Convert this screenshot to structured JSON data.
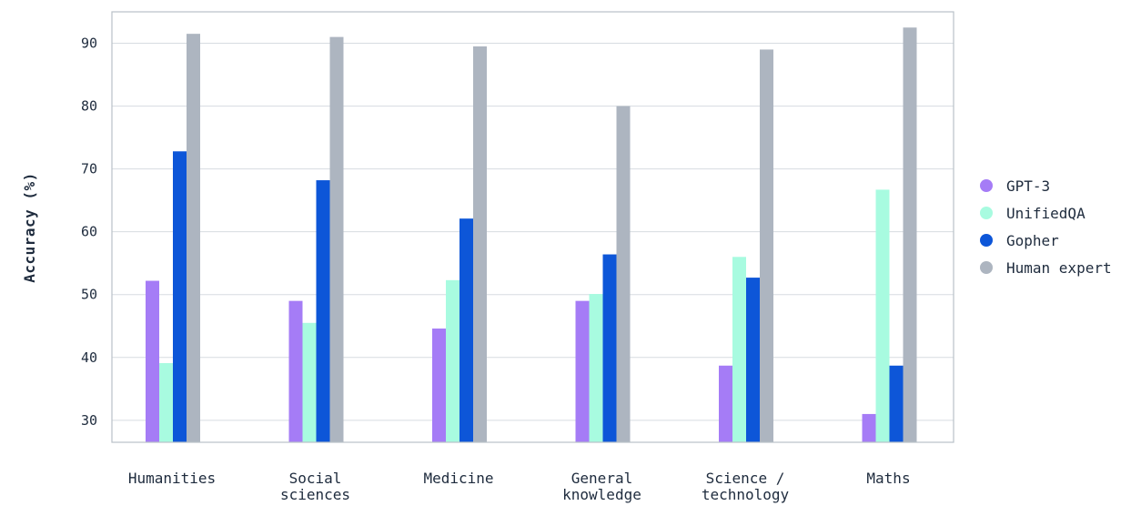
{
  "chart_data": {
    "type": "bar",
    "title": "",
    "xlabel": "",
    "ylabel": "Accuracy (%)",
    "ylim": [
      26.5,
      95
    ],
    "yticks": [
      30,
      40,
      50,
      60,
      70,
      80,
      90
    ],
    "grid": true,
    "legend_position": "right",
    "categories": [
      [
        "Humanities"
      ],
      [
        "Social",
        "sciences"
      ],
      [
        "Medicine"
      ],
      [
        "General",
        "knowledge"
      ],
      [
        "Science /",
        "technology"
      ],
      [
        "Maths"
      ]
    ],
    "series": [
      {
        "name": "GPT-3",
        "color": "#a57cf6",
        "values": [
          52.2,
          49.0,
          44.6,
          49.0,
          38.7,
          31.0
        ]
      },
      {
        "name": "UnifiedQA",
        "color": "#a8fbe0",
        "values": [
          39.1,
          45.5,
          52.3,
          50.1,
          56.0,
          66.7
        ]
      },
      {
        "name": "Gopher",
        "color": "#0d56d8",
        "values": [
          72.8,
          68.2,
          62.1,
          56.4,
          52.7,
          38.7
        ]
      },
      {
        "name": "Human expert",
        "color": "#adb5c0",
        "values": [
          91.5,
          91.0,
          89.5,
          80.0,
          89.0,
          92.5
        ]
      }
    ]
  }
}
